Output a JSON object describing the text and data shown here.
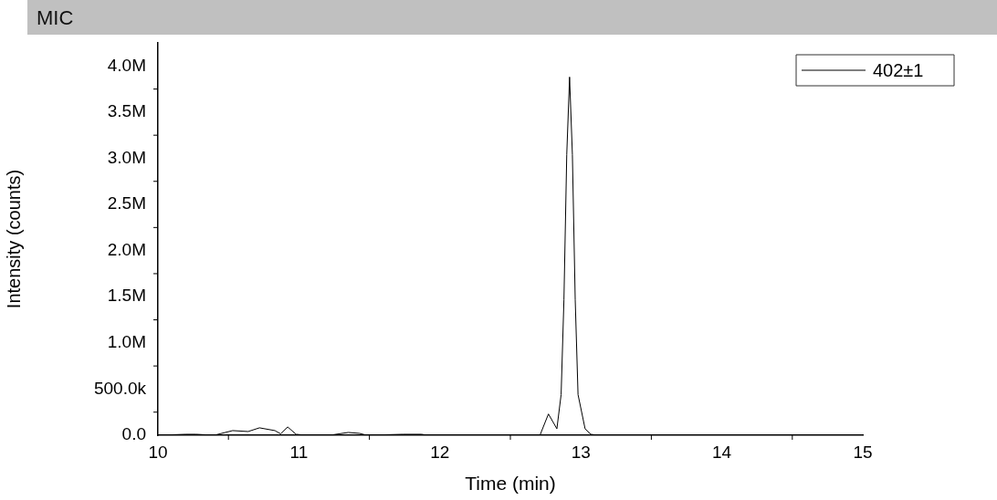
{
  "chart_data": {
    "type": "line",
    "title": "MIC",
    "xlabel": "Time (min)",
    "ylabel": "Intensity (counts)",
    "xlim": [
      10,
      15
    ],
    "xticks": [
      10,
      11,
      12,
      13,
      14,
      15
    ],
    "ylim": [
      0,
      4250000
    ],
    "yticks": [
      {
        "value": 0,
        "label": "0.0"
      },
      {
        "value": 500000,
        "label": "500.0k"
      },
      {
        "value": 1000000,
        "label": "1.0M"
      },
      {
        "value": 1500000,
        "label": "1.5M"
      },
      {
        "value": 2000000,
        "label": "2.0M"
      },
      {
        "value": 2500000,
        "label": "2.5M"
      },
      {
        "value": 3000000,
        "label": "3.0M"
      },
      {
        "value": 3500000,
        "label": "3.5M"
      },
      {
        "value": 4000000,
        "label": "4.0M"
      }
    ],
    "grid": false,
    "legend": "top right",
    "marker": "none",
    "line_style": "solid",
    "series": [
      {
        "name": "402±1",
        "color": "#000000",
        "x": [
          10.0,
          10.2,
          10.27,
          10.4,
          10.53,
          10.64,
          10.72,
          10.83,
          10.87,
          10.92,
          10.98,
          11.05,
          11.22,
          11.35,
          11.43,
          11.48,
          11.74,
          11.87,
          11.91,
          12.71,
          12.77,
          12.83,
          12.86,
          12.88,
          12.9,
          12.92,
          12.94,
          12.96,
          12.98,
          13.03,
          13.07,
          13.12,
          14.0,
          15.0
        ],
        "values": [
          0,
          10000,
          10000,
          0,
          50000,
          40000,
          80000,
          50000,
          15000,
          90000,
          10000,
          0,
          0,
          30000,
          20000,
          0,
          10000,
          10000,
          0,
          0,
          230000,
          70000,
          440000,
          1470000,
          3040000,
          3880000,
          3040000,
          1470000,
          440000,
          70000,
          10000,
          0,
          0,
          0
        ]
      }
    ]
  }
}
